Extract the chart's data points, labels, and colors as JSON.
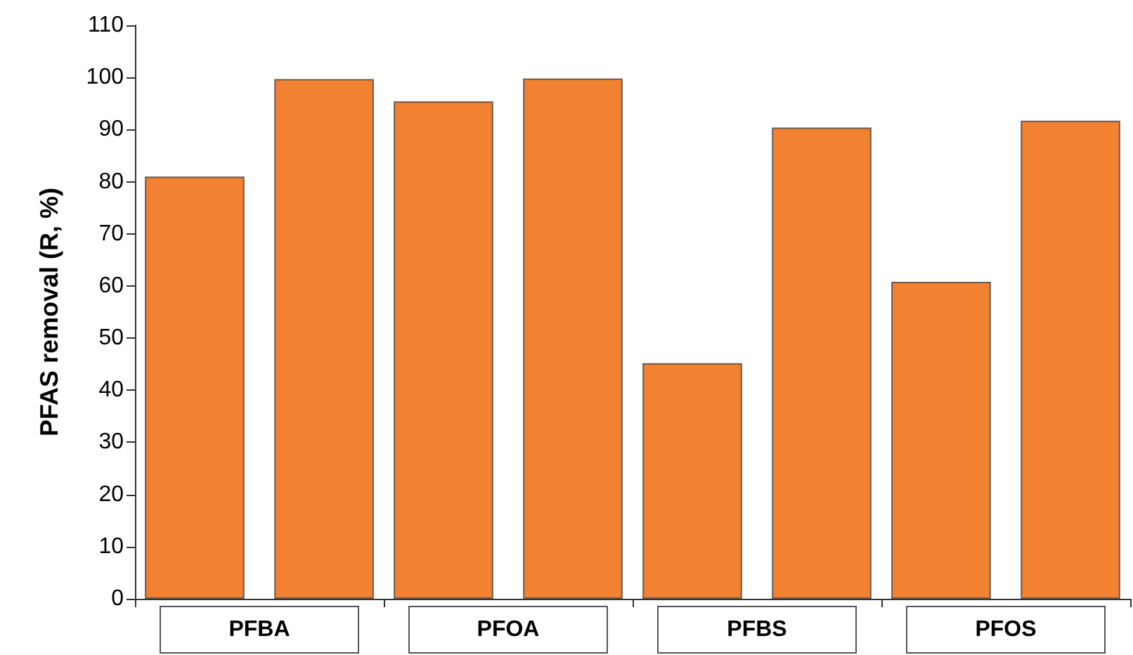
{
  "chart_data": {
    "type": "bar",
    "ylabel": "PFAS removal (R, %)",
    "categories": [
      "PFBA",
      "PFOA",
      "PFBS",
      "PFOS"
    ],
    "series": [
      {
        "color": "#f28132",
        "values": [
          81,
          95.4,
          45.2,
          60.8
        ]
      },
      {
        "color": "#f28132",
        "values": [
          99.7,
          99.8,
          90.4,
          91.7
        ]
      }
    ],
    "ylim": [
      0,
      110
    ],
    "yticks": [
      0,
      10,
      20,
      30,
      40,
      50,
      60,
      70,
      80,
      90,
      100,
      110
    ]
  }
}
